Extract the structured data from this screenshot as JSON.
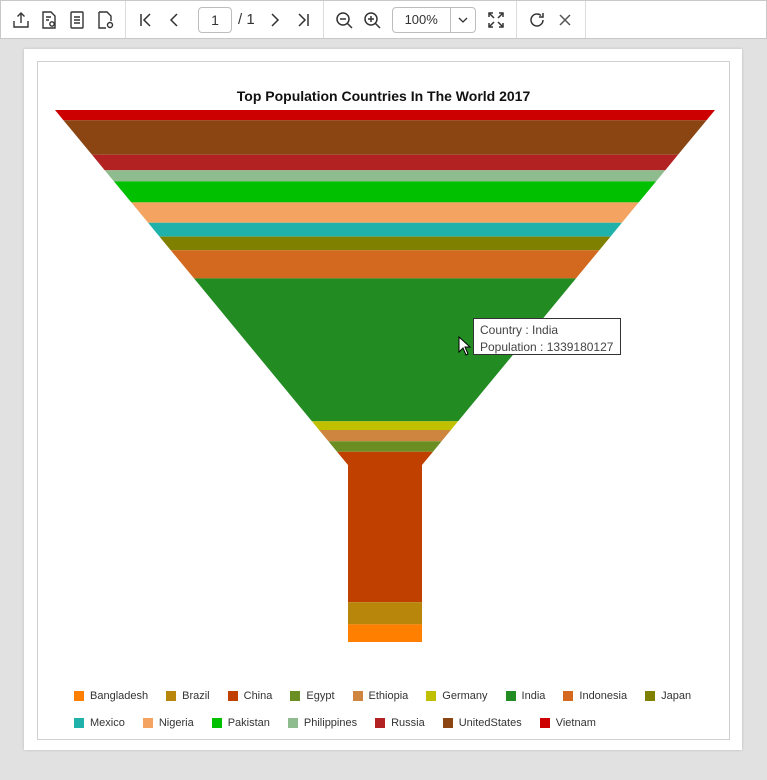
{
  "toolbar": {
    "page_current": "1",
    "page_total": "/ 1",
    "zoom_value": "100%",
    "icons": [
      "export-icon",
      "print-setup-icon",
      "document-icon",
      "page-setup-icon",
      "first-page-icon",
      "prev-page-icon",
      "next-page-icon",
      "last-page-icon",
      "zoom-out-icon",
      "zoom-in-icon",
      "fit-page-icon",
      "refresh-icon",
      "close-icon"
    ]
  },
  "tooltip": {
    "line1": "Country : India",
    "line2": "Population : 1339180127"
  },
  "chart_data": {
    "type": "funnel",
    "title": "Top Population Countries In The World 2017",
    "series": [
      {
        "name": "Vietnam",
        "value": 95540800,
        "color": "#cc0000"
      },
      {
        "name": "UnitedStates",
        "value": 324459463,
        "color": "#8b4513"
      },
      {
        "name": "Russia",
        "value": 143989754,
        "color": "#b22222"
      },
      {
        "name": "Philippines",
        "value": 104918090,
        "color": "#8fbc8f"
      },
      {
        "name": "Pakistan",
        "value": 197015955,
        "color": "#00c000"
      },
      {
        "name": "Nigeria",
        "value": 190886311,
        "color": "#f4a460"
      },
      {
        "name": "Mexico",
        "value": 129163276,
        "color": "#20b2aa"
      },
      {
        "name": "Japan",
        "value": 127484450,
        "color": "#808000"
      },
      {
        "name": "Indonesia",
        "value": 263991379,
        "color": "#d2691e"
      },
      {
        "name": "India",
        "value": 1339180127,
        "color": "#228b22"
      },
      {
        "name": "Germany",
        "value": 82114224,
        "color": "#c0c000"
      },
      {
        "name": "Ethiopia",
        "value": 104957438,
        "color": "#cd853f"
      },
      {
        "name": "Egypt",
        "value": 97553151,
        "color": "#6b8e23"
      },
      {
        "name": "China",
        "value": 1409517397,
        "color": "#c04000"
      },
      {
        "name": "Brazil",
        "value": 209288278,
        "color": "#b8860b"
      },
      {
        "name": "Bangladesh",
        "value": 164669751,
        "color": "#ff8000"
      }
    ],
    "legend": {
      "row1": [
        {
          "label": "Bangladesh",
          "color": "#ff8000"
        },
        {
          "label": "Brazil",
          "color": "#b8860b"
        },
        {
          "label": "China",
          "color": "#c04000"
        },
        {
          "label": "Egypt",
          "color": "#6b8e23"
        },
        {
          "label": "Ethiopia",
          "color": "#cd853f"
        },
        {
          "label": "Germany",
          "color": "#c0c000"
        },
        {
          "label": "India",
          "color": "#228b22"
        },
        {
          "label": "Indonesia",
          "color": "#d2691e"
        },
        {
          "label": "Japan",
          "color": "#808000"
        }
      ],
      "row2": [
        {
          "label": "Mexico",
          "color": "#20b2aa"
        },
        {
          "label": "Nigeria",
          "color": "#f4a460"
        },
        {
          "label": "Pakistan",
          "color": "#00c000"
        },
        {
          "label": "Philippines",
          "color": "#8fbc8f"
        },
        {
          "label": "Russia",
          "color": "#b22222"
        },
        {
          "label": "UnitedStates",
          "color": "#8b4513"
        },
        {
          "label": "Vietnam",
          "color": "#cc0000"
        }
      ]
    }
  }
}
